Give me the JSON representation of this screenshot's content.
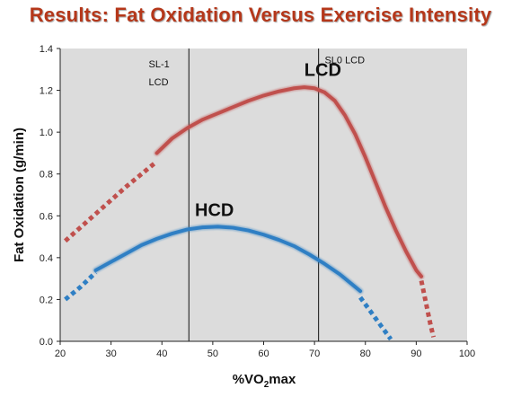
{
  "slide": {
    "title": "Results: Fat Oxidation Versus Exercise Intensity"
  },
  "chart_data": {
    "type": "line",
    "title": "Results: Fat Oxidation Versus Exercise Intensity",
    "xlabel_prefix": "%VO",
    "xlabel_sub": "2",
    "xlabel_suffix": "max",
    "ylabel": "Fat Oxidation (g/min)",
    "xlim": [
      20,
      100
    ],
    "ylim": [
      0,
      1.4
    ],
    "xticks": [
      "20",
      "30",
      "40",
      "50",
      "60",
      "70",
      "80",
      "90",
      "100"
    ],
    "yticks": [
      "0.0",
      "0.2",
      "0.4",
      "0.6",
      "0.8",
      "1.0",
      "1.2",
      "1.4"
    ],
    "grid": false,
    "legend": "none",
    "background": "#dcdcdc",
    "vertical_lines": [
      {
        "x": 45.3,
        "label_lines": [
          "SL-1",
          "LCD"
        ],
        "label_x": 37.4,
        "label_y": 1.31
      },
      {
        "x": 70.8,
        "label_lines": [
          "SL0 LCD"
        ],
        "label_x": 72,
        "label_y": 1.33
      }
    ],
    "series": [
      {
        "name": "LCD",
        "color": "#c0504d",
        "label_x": 68,
        "label_y": 1.27,
        "dotted_start": {
          "x": [
            21,
            24,
            27,
            30,
            33,
            36,
            39
          ],
          "y": [
            0.48,
            0.545,
            0.61,
            0.675,
            0.74,
            0.8,
            0.86
          ]
        },
        "solid": {
          "x": [
            39,
            42,
            45,
            48,
            51,
            54,
            57,
            60,
            63,
            66,
            68,
            70,
            72,
            74,
            76,
            78,
            80,
            82,
            84,
            86,
            88,
            90,
            91
          ],
          "y": [
            0.9,
            0.97,
            1.02,
            1.06,
            1.09,
            1.12,
            1.15,
            1.175,
            1.195,
            1.21,
            1.215,
            1.21,
            1.19,
            1.15,
            1.08,
            0.99,
            0.88,
            0.76,
            0.64,
            0.53,
            0.43,
            0.34,
            0.31
          ]
        },
        "dotted_end": {
          "x": [
            91,
            91.6,
            92.2,
            92.8,
            93.4
          ],
          "y": [
            0.29,
            0.22,
            0.15,
            0.08,
            0.02
          ]
        }
      },
      {
        "name": "HCD",
        "color": "#2f7fc4",
        "label_x": 46.5,
        "label_y": 0.6,
        "dotted_start": {
          "x": [
            21,
            24,
            27
          ],
          "y": [
            0.2,
            0.26,
            0.33
          ]
        },
        "solid": {
          "x": [
            27,
            30,
            33,
            36,
            39,
            42,
            45,
            48,
            51,
            54,
            57,
            60,
            63,
            66,
            69,
            72,
            75,
            78,
            79
          ],
          "y": [
            0.34,
            0.38,
            0.42,
            0.46,
            0.49,
            0.515,
            0.535,
            0.545,
            0.548,
            0.543,
            0.53,
            0.51,
            0.485,
            0.455,
            0.415,
            0.37,
            0.32,
            0.26,
            0.24
          ]
        },
        "dotted_end": {
          "x": [
            79,
            80.5,
            82,
            83.5,
            85
          ],
          "y": [
            0.21,
            0.16,
            0.11,
            0.06,
            0.01
          ]
        }
      }
    ]
  }
}
